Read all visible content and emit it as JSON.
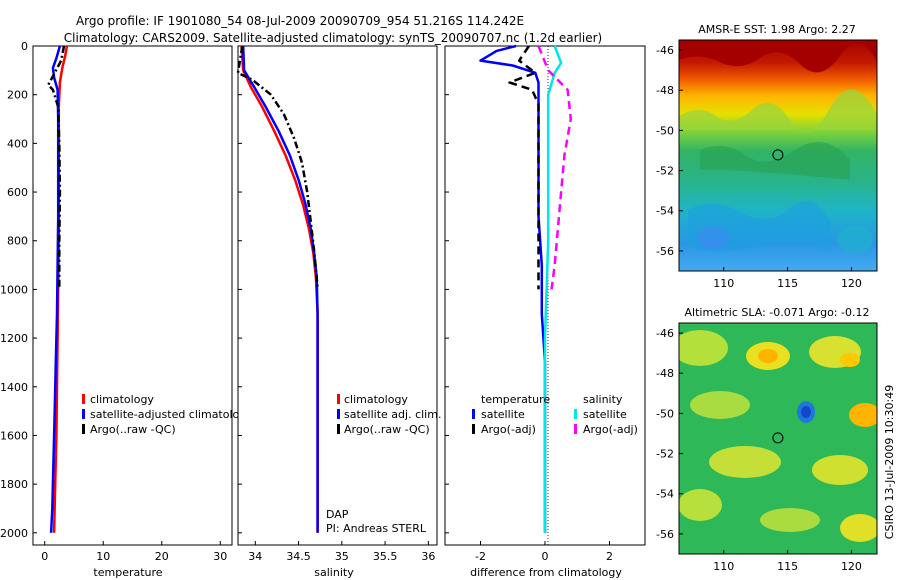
{
  "figure": {
    "title_line1": "Argo profile: IF 1901080_54 08-Jul-2009 20090709_954 51.216S 114.242E",
    "title_line2": "Climatology: CARS2009. Satellite-adjusted climatology: synTS_20090707.nc (1.2d earlier)",
    "side_text": "CSIRO 13-Jul-2009 10:30:49",
    "dap_label": "DAP",
    "pi_label": "PI: Andreas STERL"
  },
  "colors": {
    "climatology": "#ff0000",
    "satellite": "#0000ff",
    "argo": "#000000",
    "salinity_satellite": "#00e5e5",
    "salinity_argo": "#ff00ff"
  },
  "chart_data": [
    {
      "id": "temperature",
      "type": "line",
      "xlabel": "temperature",
      "ylabel": "",
      "xlim": [
        -2,
        32
      ],
      "ylim": [
        2050,
        0
      ],
      "xticks": [
        0,
        10,
        20,
        30
      ],
      "yticks": [
        0,
        200,
        400,
        600,
        800,
        1000,
        1200,
        1400,
        1600,
        1800,
        2000
      ],
      "legend": [
        "climatology",
        "satellite-adjusted climatology",
        "Argo(..raw -QC)"
      ],
      "series": [
        {
          "name": "climatology",
          "color": "#ff0000",
          "dash": "",
          "points": [
            [
              3.8,
              0
            ],
            [
              3.5,
              40
            ],
            [
              3.0,
              90
            ],
            [
              2.6,
              150
            ],
            [
              2.4,
              250
            ],
            [
              2.4,
              400
            ],
            [
              2.4,
              600
            ],
            [
              2.4,
              800
            ],
            [
              2.3,
              1000
            ],
            [
              2.2,
              1200
            ],
            [
              2.1,
              1400
            ],
            [
              2.0,
              1600
            ],
            [
              1.8,
              1800
            ],
            [
              1.6,
              2000
            ]
          ]
        },
        {
          "name": "satellite-adjusted climatology",
          "color": "#0000ff",
          "dash": "",
          "points": [
            [
              2.6,
              0
            ],
            [
              2.0,
              50
            ],
            [
              1.4,
              90
            ],
            [
              1.6,
              130
            ],
            [
              2.2,
              180
            ],
            [
              2.3,
              300
            ],
            [
              2.3,
              500
            ],
            [
              2.3,
              700
            ],
            [
              2.2,
              900
            ],
            [
              2.1,
              1100
            ],
            [
              1.9,
              1300
            ],
            [
              1.7,
              1500
            ],
            [
              1.5,
              1700
            ],
            [
              1.3,
              1900
            ],
            [
              1.1,
              2000
            ]
          ]
        },
        {
          "name": "Argo(..raw -QC)",
          "color": "#000000",
          "dash": "7,3,2,3",
          "points": [
            [
              3.3,
              0
            ],
            [
              2.8,
              60
            ],
            [
              1.5,
              120
            ],
            [
              0.6,
              160
            ],
            [
              1.4,
              180
            ],
            [
              2.3,
              250
            ],
            [
              2.5,
              400
            ],
            [
              2.6,
              600
            ],
            [
              2.5,
              800
            ],
            [
              2.5,
              1000
            ]
          ]
        }
      ]
    },
    {
      "id": "salinity",
      "type": "line",
      "xlabel": "salinity",
      "ylabel": "",
      "xlim": [
        33.8,
        36.1
      ],
      "ylim": [
        2050,
        0
      ],
      "xticks": [
        34,
        34.5,
        35,
        35.5,
        36
      ],
      "yticks": [],
      "legend": [
        "climatology",
        "satellite adj. clim.",
        "Argo(..raw -QC)"
      ],
      "series": [
        {
          "name": "climatology",
          "color": "#ff0000",
          "dash": "",
          "points": [
            [
              33.84,
              0
            ],
            [
              33.86,
              100
            ],
            [
              33.95,
              170
            ],
            [
              34.08,
              250
            ],
            [
              34.22,
              350
            ],
            [
              34.35,
              450
            ],
            [
              34.46,
              550
            ],
            [
              34.55,
              650
            ],
            [
              34.62,
              750
            ],
            [
              34.67,
              850
            ],
            [
              34.7,
              950
            ],
            [
              34.72,
              1100
            ],
            [
              34.72,
              1300
            ],
            [
              34.72,
              1500
            ],
            [
              34.72,
              1700
            ],
            [
              34.72,
              1900
            ],
            [
              34.72,
              2000
            ]
          ]
        },
        {
          "name": "satellite adj. clim.",
          "color": "#0000ff",
          "dash": "",
          "points": [
            [
              33.86,
              0
            ],
            [
              33.87,
              100
            ],
            [
              33.99,
              170
            ],
            [
              34.12,
              250
            ],
            [
              34.27,
              350
            ],
            [
              34.4,
              450
            ],
            [
              34.5,
              550
            ],
            [
              34.58,
              650
            ],
            [
              34.64,
              750
            ],
            [
              34.68,
              850
            ],
            [
              34.71,
              950
            ],
            [
              34.72,
              1100
            ],
            [
              34.72,
              1300
            ],
            [
              34.72,
              1500
            ],
            [
              34.72,
              1700
            ],
            [
              34.72,
              1900
            ],
            [
              34.72,
              2000
            ]
          ]
        },
        {
          "name": "Argo(..raw -QC)",
          "color": "#000000",
          "dash": "7,3,2,3",
          "points": [
            [
              33.85,
              0
            ],
            [
              33.8,
              110
            ],
            [
              33.97,
              140
            ],
            [
              34.18,
              200
            ],
            [
              34.33,
              280
            ],
            [
              34.45,
              380
            ],
            [
              34.54,
              480
            ],
            [
              34.6,
              600
            ],
            [
              34.64,
              720
            ],
            [
              34.68,
              840
            ],
            [
              34.71,
              950
            ],
            [
              34.72,
              1000
            ]
          ]
        }
      ]
    },
    {
      "id": "difference",
      "type": "line",
      "xlabel": "difference from climatology",
      "ylabel": "",
      "xlim": [
        -3.1,
        3.1
      ],
      "ylim": [
        2050,
        0
      ],
      "xticks": [
        -2,
        0,
        2
      ],
      "yticks": [],
      "legend_temperature_title": "temperature",
      "legend_salinity_title": "salinity",
      "legend": [
        "satellite",
        "Argo(-adj)",
        "satellite",
        "Argo(-adj)"
      ],
      "series": [
        {
          "name": "temperature satellite",
          "color": "#0000ff",
          "dash": "",
          "points": [
            [
              -0.9,
              0
            ],
            [
              -1.5,
              20
            ],
            [
              -2.0,
              60
            ],
            [
              -1.0,
              80
            ],
            [
              -0.3,
              110
            ],
            [
              -0.2,
              150
            ],
            [
              -0.2,
              300
            ],
            [
              -0.2,
              500
            ],
            [
              -0.2,
              700
            ],
            [
              -0.1,
              900
            ],
            [
              -0.1,
              1100
            ],
            [
              0,
              1300
            ],
            [
              0,
              1500
            ],
            [
              0,
              1700
            ],
            [
              0,
              1900
            ],
            [
              0,
              2000
            ]
          ]
        },
        {
          "name": "temperature Argo(-adj)",
          "color": "#000000",
          "dash": "8,5",
          "points": [
            [
              -0.5,
              0
            ],
            [
              -0.8,
              60
            ],
            [
              -0.3,
              110
            ],
            [
              -1.1,
              150
            ],
            [
              -0.4,
              180
            ],
            [
              -0.2,
              240
            ],
            [
              -0.2,
              400
            ],
            [
              -0.2,
              600
            ],
            [
              -0.2,
              800
            ],
            [
              -0.2,
              1000
            ]
          ]
        },
        {
          "name": "salinity satellite",
          "color": "#00e5e5",
          "dash": "",
          "points": [
            [
              0.3,
              0
            ],
            [
              0.5,
              70
            ],
            [
              0.3,
              110
            ],
            [
              0.1,
              200
            ],
            [
              0.1,
              400
            ],
            [
              0.1,
              800
            ],
            [
              0.0,
              1200
            ],
            [
              0.0,
              1600
            ],
            [
              0.0,
              2000
            ]
          ]
        },
        {
          "name": "salinity Argo(-adj)",
          "color": "#ff00ff",
          "dash": "8,5",
          "points": [
            [
              -0.2,
              0
            ],
            [
              0.1,
              100
            ],
            [
              0.7,
              180
            ],
            [
              0.8,
              300
            ],
            [
              0.6,
              450
            ],
            [
              0.5,
              600
            ],
            [
              0.4,
              750
            ],
            [
              0.3,
              900
            ],
            [
              0.2,
              1000
            ]
          ]
        }
      ]
    },
    {
      "id": "sst-map",
      "type": "heatmap",
      "title": "AMSR-E SST: 1.98 Argo: 2.27",
      "xticks": [
        110,
        115,
        120
      ],
      "yticks": [
        -46,
        -48,
        -50,
        -52,
        -54,
        -56
      ],
      "xlim": [
        106.5,
        122
      ],
      "ylim": [
        -57,
        -45.5
      ],
      "marker": [
        114.24,
        -51.22
      ]
    },
    {
      "id": "sla-map",
      "type": "heatmap",
      "title": "Altimetric SLA: -0.071 Argo: -0.12",
      "xticks": [
        110,
        115,
        120
      ],
      "yticks": [
        -46,
        -48,
        -50,
        -52,
        -54,
        -56
      ],
      "xlim": [
        106.5,
        122
      ],
      "ylim": [
        -57,
        -45.5
      ],
      "marker": [
        114.24,
        -51.22
      ]
    }
  ]
}
